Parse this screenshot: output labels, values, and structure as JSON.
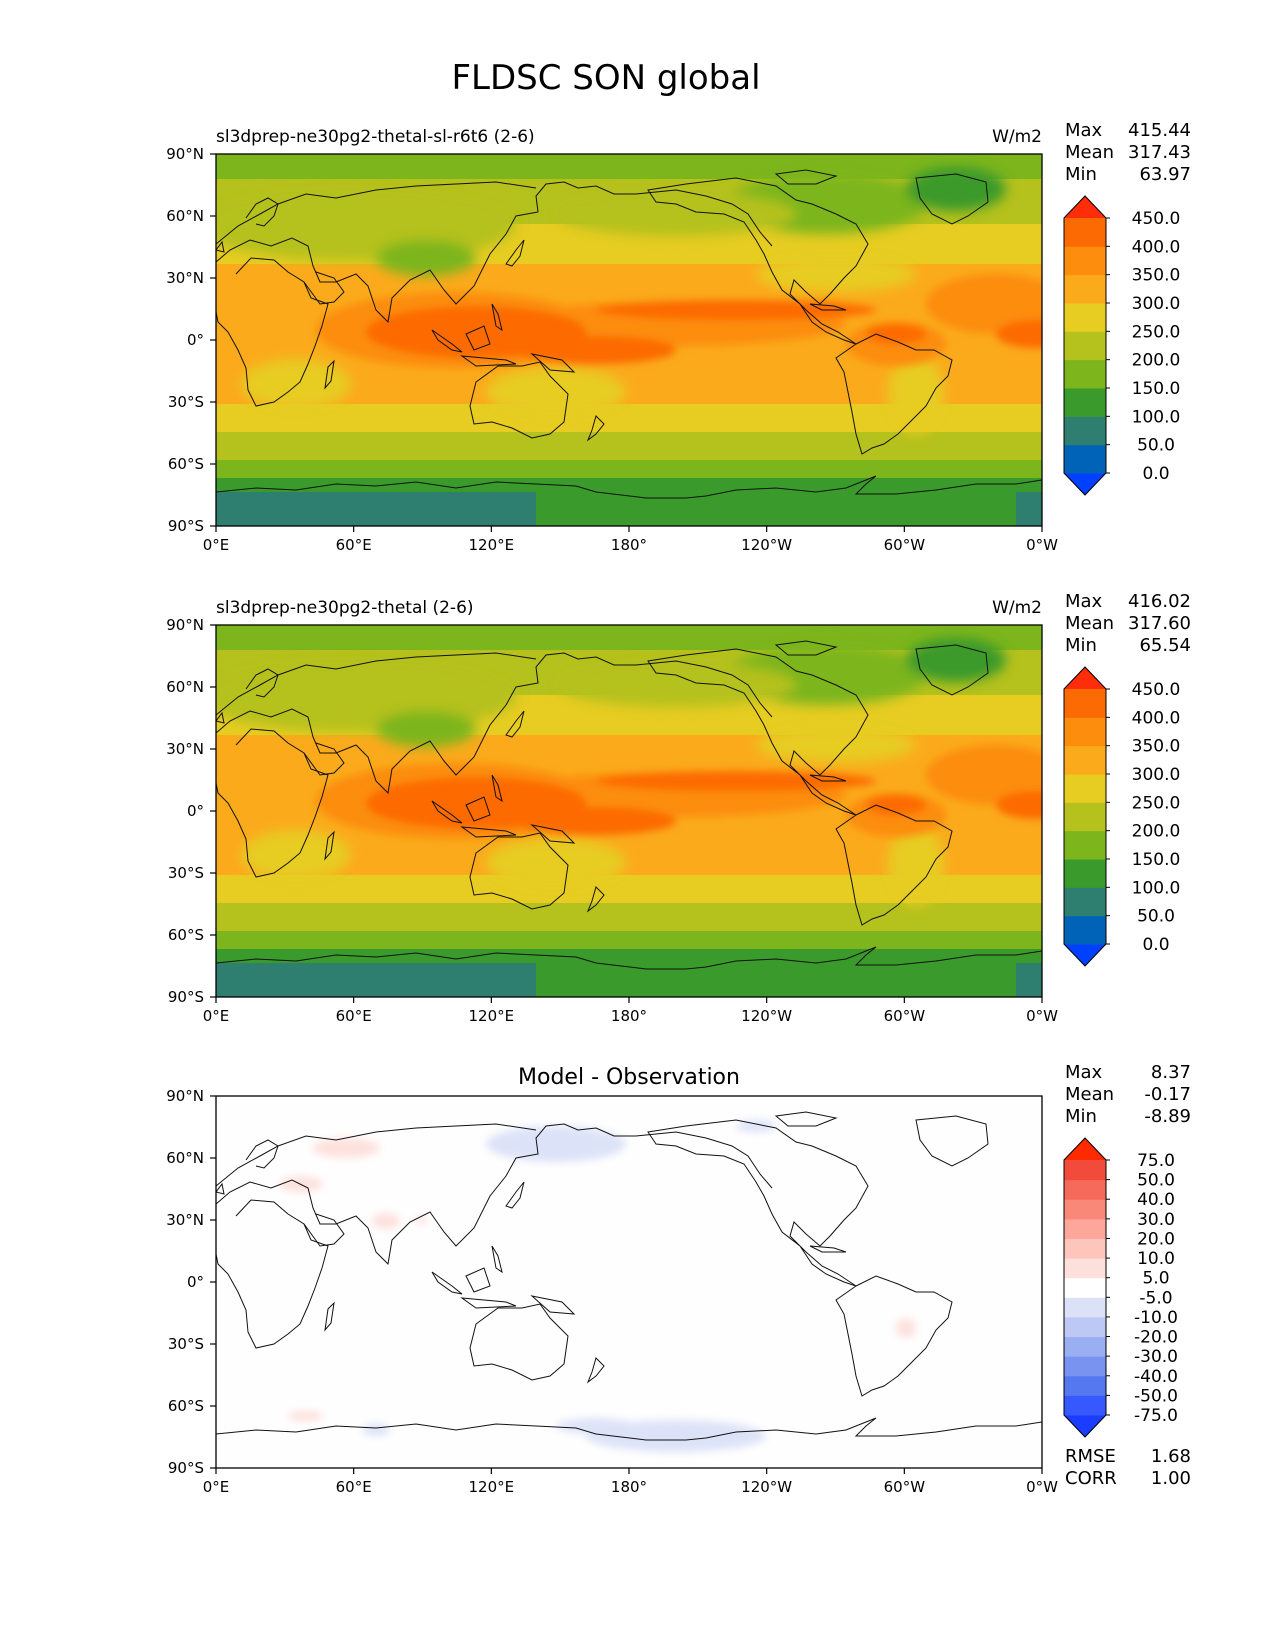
{
  "figure": {
    "title": "FLDSC SON global"
  },
  "axes": {
    "lat_ticks": [
      "90°N",
      "60°N",
      "30°N",
      "0°",
      "30°S",
      "60°S",
      "90°S"
    ],
    "lon_ticks": [
      "0°E",
      "60°E",
      "120°E",
      "180°",
      "120°W",
      "60°W",
      "0°W"
    ]
  },
  "panels": [
    {
      "title": "sl3dprep-ne30pg2-thetal-sl-r6t6 (2-6)",
      "units": "W/m2",
      "stats": [
        {
          "label": "Max",
          "value": "415.44"
        },
        {
          "label": "Mean",
          "value": "317.43"
        },
        {
          "label": "Min",
          "value": "63.97"
        }
      ],
      "colorbar_labels": [
        "450.0",
        "400.0",
        "350.0",
        "300.0",
        "250.0",
        "200.0",
        "150.0",
        "100.0",
        "50.0",
        "0.0"
      ]
    },
    {
      "title": "sl3dprep-ne30pg2-thetal (2-6)",
      "units": "W/m2",
      "stats": [
        {
          "label": "Max",
          "value": "416.02"
        },
        {
          "label": "Mean",
          "value": "317.60"
        },
        {
          "label": "Min",
          "value": "65.54"
        }
      ],
      "colorbar_labels": [
        "450.0",
        "400.0",
        "350.0",
        "300.0",
        "250.0",
        "200.0",
        "150.0",
        "100.0",
        "50.0",
        "0.0"
      ]
    },
    {
      "title": "Model - Observation",
      "units": "",
      "stats": [
        {
          "label": "Max",
          "value": "8.37"
        },
        {
          "label": "Mean",
          "value": "-0.17"
        },
        {
          "label": "Min",
          "value": "-8.89"
        }
      ],
      "colorbar_labels": [
        "75.0",
        "50.0",
        "40.0",
        "30.0",
        "20.0",
        "10.0",
        "5.0",
        "-5.0",
        "-10.0",
        "-20.0",
        "-30.0",
        "-40.0",
        "-50.0",
        "-75.0"
      ],
      "metrics": [
        {
          "label": "RMSE",
          "value": "1.68"
        },
        {
          "label": "CORR",
          "value": "1.00"
        }
      ]
    }
  ],
  "colors": {
    "field_levels": [
      "#0040ff",
      "#0063b8",
      "#2e7f6f",
      "#3a9a2c",
      "#7cb51c",
      "#b5c11c",
      "#e7cc22",
      "#fbaa1c",
      "#fc8d0d",
      "#fc6a04",
      "#ff2d0a"
    ],
    "diff_levels": [
      "#1a3dff",
      "#3558ff",
      "#5577f0",
      "#7893f0",
      "#9aaef2",
      "#bdc8f4",
      "#dbe2f8",
      "#ffffff",
      "#fde0db",
      "#fdc5bb",
      "#fca79a",
      "#f98878",
      "#f66a5b",
      "#f24b3b",
      "#ff2a00"
    ]
  },
  "chart_data": [
    {
      "type": "heatmap",
      "title": "sl3dprep-ne30pg2-thetal-sl-r6t6 (2-6)",
      "suptitle": "FLDSC SON global",
      "units": "W/m2",
      "xlabel": "",
      "ylabel": "",
      "xlim": [
        0,
        360
      ],
      "ylim": [
        -90,
        90
      ],
      "levels": [
        0,
        50,
        100,
        150,
        200,
        250,
        300,
        350,
        400,
        450
      ],
      "zonal_mean_profile": {
        "lat": [
          90,
          75,
          60,
          45,
          30,
          15,
          0,
          -15,
          -30,
          -45,
          -60,
          -75,
          -90
        ],
        "value": [
          200,
          215,
          230,
          270,
          320,
          370,
          385,
          370,
          330,
          290,
          230,
          160,
          110
        ]
      },
      "max": 415.44,
      "mean": 317.43,
      "min": 63.97
    },
    {
      "type": "heatmap",
      "title": "sl3dprep-ne30pg2-thetal (2-6)",
      "units": "W/m2",
      "xlabel": "",
      "ylabel": "",
      "xlim": [
        0,
        360
      ],
      "ylim": [
        -90,
        90
      ],
      "levels": [
        0,
        50,
        100,
        150,
        200,
        250,
        300,
        350,
        400,
        450
      ],
      "zonal_mean_profile": {
        "lat": [
          90,
          75,
          60,
          45,
          30,
          15,
          0,
          -15,
          -30,
          -45,
          -60,
          -75,
          -90
        ],
        "value": [
          200,
          215,
          230,
          270,
          320,
          370,
          385,
          370,
          330,
          290,
          230,
          160,
          110
        ]
      },
      "max": 416.02,
      "mean": 317.6,
      "min": 65.54
    },
    {
      "type": "heatmap",
      "title": "Model - Observation",
      "xlabel": "",
      "ylabel": "",
      "xlim": [
        0,
        360
      ],
      "ylim": [
        -90,
        90
      ],
      "levels": [
        -75,
        -50,
        -40,
        -30,
        -20,
        -10,
        -5,
        5,
        10,
        20,
        30,
        40,
        50,
        75
      ],
      "max": 8.37,
      "mean": -0.17,
      "min": -8.89,
      "rmse": 1.68,
      "corr": 1.0
    }
  ]
}
